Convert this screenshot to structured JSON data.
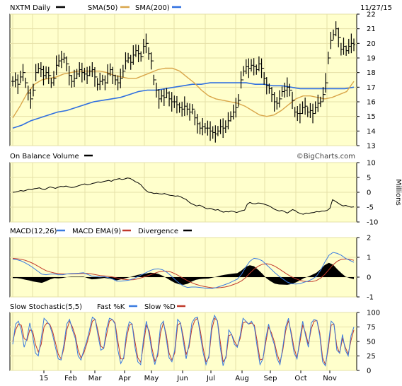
{
  "header": {
    "symbol_label": "NXTM Daily",
    "sma50_label": "SMA(50)",
    "sma200_label": "SMA(200)",
    "date": "11/27/15"
  },
  "colors": {
    "panel_bg": "#ffffcc",
    "grid": "#e6e0a8",
    "price": "#000000",
    "sma50": "#d9a64a",
    "sma200": "#2f6fe0",
    "macd": "#3a7be0",
    "macd_ema": "#c0392b",
    "stoch_fast": "#3a7be0",
    "stoch_slow": "#c0392b"
  },
  "panels": {
    "obv_title": "On Balance Volume",
    "obv_unit": "Millions",
    "macd_title": "MACD(12,26)",
    "macd_ema_title": "MACD EMA(9)",
    "divergence_title": "Divergence",
    "stoch_title": "Slow Stochastic(5,5)",
    "stoch_fast_title": "Fast %K",
    "stoch_slow_title": "Slow %D",
    "watermark": "©BigCharts.com"
  },
  "x_axis_labels": [
    "15",
    "Feb",
    "Mar",
    "Apr",
    "May",
    "Jun",
    "Jul",
    "Aug",
    "Sep",
    "Oct",
    "Nov"
  ],
  "chart_data": [
    {
      "type": "line",
      "title": "NXTM Daily",
      "series_names": [
        "NXTM Daily",
        "SMA(50)",
        "SMA(200)"
      ],
      "ylim": [
        13,
        22
      ],
      "yticks": [
        13,
        14,
        15,
        16,
        17,
        18,
        19,
        20,
        21,
        22
      ],
      "price": [
        17.4,
        17.5,
        17.2,
        17.7,
        18,
        17.3,
        16.6,
        16.2,
        16.8,
        18,
        18.3,
        18.2,
        17.8,
        18,
        17.8,
        17.3,
        17.6,
        18.5,
        18.8,
        18.9,
        19,
        18.6,
        17.8,
        17.4,
        17.6,
        17.9,
        18.2,
        18,
        17.9,
        17.8,
        18.1,
        18.2,
        17.7,
        17.2,
        17.4,
        17.5,
        17.3,
        17.9,
        18.2,
        17.8,
        17.5,
        17.3,
        17.6,
        18.1,
        18.8,
        19,
        18.7,
        19.2,
        19.5,
        19.3,
        19.1,
        19.8,
        20,
        19.3,
        18.8,
        17.5,
        16.8,
        16.2,
        16.4,
        16.3,
        16.6,
        16.2,
        16,
        16,
        15.8,
        15.6,
        15.5,
        15.7,
        15.5,
        15.3,
        15.5,
        14.9,
        14.5,
        14.2,
        14.3,
        14.2,
        14.2,
        14,
        13.9,
        13.8,
        14,
        14.3,
        14.2,
        14.3,
        14.7,
        15,
        15.3,
        15.6,
        16.1,
        17.5,
        18.1,
        18.4,
        18.3,
        18.5,
        18.4,
        18.2,
        18.6,
        18.3,
        17.6,
        17.1,
        16.9,
        16.5,
        16,
        15.9,
        16.2,
        16.7,
        16.8,
        17,
        16.8,
        16.1,
        15.3,
        15.2,
        15.2,
        15.6,
        15.7,
        15.3,
        15.4,
        15.2,
        15.6,
        15.9,
        16,
        16.5,
        17.3,
        19,
        20.2,
        20.6,
        21,
        20.4,
        19.6,
        19.8,
        19.5,
        19.8,
        20,
        19.9
      ],
      "sma50": [
        14.9,
        15.7,
        16.6,
        17.2,
        17.5,
        17.6,
        17.7,
        17.9,
        18,
        18.1,
        18.1,
        18.1,
        18.1,
        18,
        17.8,
        17.7,
        17.6,
        17.6,
        17.8,
        18,
        18.2,
        18.3,
        18.3,
        18.1,
        17.7,
        17.3,
        16.8,
        16.4,
        16.2,
        16.1,
        16,
        15.9,
        15.7,
        15.4,
        15.1,
        15,
        15.1,
        15.4,
        15.8,
        16.2,
        16.4,
        16.4,
        16.3,
        16.2,
        16.3,
        16.5,
        16.7,
        17.4
      ],
      "sma200": [
        14.2,
        14.4,
        14.7,
        14.9,
        15.1,
        15.3,
        15.4,
        15.6,
        15.8,
        16,
        16.1,
        16.2,
        16.3,
        16.5,
        16.7,
        16.8,
        16.8,
        16.9,
        17,
        17.1,
        17.2,
        17.2,
        17.3,
        17.3,
        17.3,
        17.3,
        17.3,
        17.2,
        17.2,
        17.1,
        17.1,
        17,
        16.9,
        16.9,
        16.9,
        16.9,
        16.9,
        16.9,
        17
      ]
    },
    {
      "type": "line",
      "title": "On Balance Volume",
      "ylabel": "Millions",
      "ylim": [
        -10,
        10
      ],
      "yticks": [
        10,
        5,
        0,
        -5,
        -10
      ],
      "values": [
        0,
        0.1,
        0.3,
        0.6,
        0.4,
        0.7,
        1,
        0.9,
        1.2,
        1.3,
        1.5,
        1.1,
        0.9,
        1.4,
        1.8,
        1.6,
        1.3,
        1.7,
        2,
        1.9,
        2.1,
        1.8,
        1.6,
        1.7,
        2,
        2.3,
        2.6,
        2.8,
        2.5,
        2.7,
        3,
        3.2,
        3.5,
        3.3,
        3.6,
        3.8,
        4,
        3.7,
        4.2,
        4.4,
        4.6,
        4.3,
        4.5,
        4.8,
        4.7,
        4.2,
        3.6,
        3.2,
        2.6,
        1.5,
        0.6,
        0,
        -0.1,
        -0.4,
        -0.3,
        -0.5,
        -0.6,
        -0.4,
        -0.8,
        -1,
        -1.1,
        -1.3,
        -1.2,
        -1.5,
        -2,
        -2.4,
        -3.2,
        -3.8,
        -4.2,
        -4.6,
        -4.3,
        -4.7,
        -5.2,
        -5.6,
        -5.4,
        -5.7,
        -6,
        -5.8,
        -6.3,
        -6.7,
        -6.5,
        -6.6,
        -6.3,
        -6.5,
        -6.8,
        -6.5,
        -6.2,
        -6,
        -4,
        -3.4,
        -3.8,
        -3.9,
        -3.6,
        -3.7,
        -3.9,
        -4.2,
        -4.5,
        -5,
        -5.6,
        -6,
        -6.3,
        -6.1,
        -6.5,
        -7,
        -6.4,
        -5.8,
        -6.2,
        -6.8,
        -7.2,
        -7.4,
        -7,
        -7.1,
        -6.9,
        -6.8,
        -6.5,
        -6.6,
        -6.3,
        -6.3,
        -6.1,
        -5.4,
        -2.5,
        -3,
        -3.6,
        -4.2,
        -4.6,
        -4.4,
        -4.8,
        -5,
        -4.9
      ]
    },
    {
      "type": "line",
      "title": "MACD(12,26)",
      "series_names": [
        "MACD(12,26)",
        "MACD EMA(9)",
        "Divergence"
      ],
      "ylim": [
        -1,
        2
      ],
      "yticks": [
        2,
        1,
        0,
        -1
      ],
      "macd": [
        0.9,
        0.88,
        0.82,
        0.72,
        0.6,
        0.46,
        0.3,
        0.15,
        0.12,
        0.15,
        0.16,
        0.12,
        0.12,
        0.16,
        0.18,
        0.19,
        0.2,
        0.22,
        0.14,
        0.05,
        0.02,
        0.01,
        0.02,
        -0.03,
        -0.1,
        -0.2,
        -0.2,
        -0.18,
        -0.15,
        -0.08,
        0.02,
        0.12,
        0.22,
        0.33,
        0.4,
        0.42,
        0.37,
        0.25,
        0.08,
        -0.12,
        -0.3,
        -0.45,
        -0.52,
        -0.5,
        -0.5,
        -0.52,
        -0.55,
        -0.58,
        -0.57,
        -0.52,
        -0.45,
        -0.38,
        -0.3,
        -0.2,
        -0.1,
        0.15,
        0.5,
        0.8,
        0.95,
        0.92,
        0.82,
        0.62,
        0.43,
        0.22,
        0.05,
        -0.1,
        -0.25,
        -0.33,
        -0.35,
        -0.33,
        -0.26,
        -0.2,
        -0.1,
        0.05,
        0.35,
        0.75,
        1.1,
        1.25,
        1.2,
        1.1,
        0.95,
        0.85,
        0.75
      ],
      "signal": [
        0.95,
        0.93,
        0.9,
        0.85,
        0.77,
        0.68,
        0.56,
        0.44,
        0.33,
        0.26,
        0.21,
        0.18,
        0.16,
        0.16,
        0.16,
        0.17,
        0.18,
        0.19,
        0.19,
        0.16,
        0.12,
        0.08,
        0.06,
        0.04,
        0.01,
        -0.04,
        -0.09,
        -0.12,
        -0.14,
        -0.13,
        -0.09,
        -0.03,
        0.04,
        0.11,
        0.19,
        0.26,
        0.3,
        0.3,
        0.26,
        0.17,
        0.06,
        -0.06,
        -0.18,
        -0.28,
        -0.36,
        -0.42,
        -0.47,
        -0.51,
        -0.54,
        -0.54,
        -0.53,
        -0.5,
        -0.45,
        -0.38,
        -0.3,
        -0.19,
        -0.02,
        0.2,
        0.4,
        0.55,
        0.65,
        0.68,
        0.64,
        0.55,
        0.42,
        0.28,
        0.14,
        0.02,
        -0.08,
        -0.16,
        -0.21,
        -0.23,
        -0.22,
        -0.17,
        -0.05,
        0.14,
        0.38,
        0.62,
        0.8,
        0.9,
        0.92,
        0.9,
        0.85
      ]
    },
    {
      "type": "line",
      "title": "Slow Stochastic(5,5)",
      "series_names": [
        "Fast %K",
        "Slow %D"
      ],
      "ylim": [
        0,
        100
      ],
      "yticks": [
        100,
        75,
        50,
        25,
        0
      ],
      "fast_k": [
        45,
        80,
        85,
        70,
        40,
        55,
        82,
        60,
        30,
        25,
        55,
        90,
        85,
        78,
        62,
        40,
        20,
        18,
        45,
        80,
        88,
        70,
        55,
        25,
        18,
        35,
        50,
        70,
        92,
        88,
        60,
        35,
        38,
        72,
        90,
        88,
        80,
        35,
        12,
        22,
        65,
        84,
        80,
        40,
        15,
        10,
        55,
        85,
        62,
        30,
        10,
        30,
        78,
        85,
        55,
        22,
        15,
        35,
        88,
        82,
        50,
        20,
        45,
        82,
        90,
        92,
        60,
        30,
        10,
        25,
        80,
        95,
        85,
        40,
        8,
        25,
        70,
        62,
        45,
        40,
        60,
        90,
        85,
        80,
        85,
        75,
        40,
        10,
        20,
        55,
        80,
        60,
        45,
        20,
        10,
        40,
        75,
        90,
        60,
        30,
        20,
        55,
        85,
        60,
        40,
        82,
        88,
        86,
        60,
        15,
        8,
        45,
        85,
        80,
        35,
        30,
        62,
        35,
        25,
        60,
        75
      ],
      "slow_d": [
        50,
        70,
        80,
        78,
        55,
        52,
        70,
        68,
        45,
        32,
        45,
        75,
        82,
        80,
        68,
        48,
        28,
        20,
        38,
        70,
        85,
        75,
        60,
        35,
        22,
        30,
        45,
        63,
        85,
        88,
        68,
        42,
        38,
        62,
        85,
        88,
        82,
        50,
        20,
        20,
        55,
        78,
        80,
        50,
        22,
        14,
        45,
        78,
        68,
        38,
        16,
        25,
        65,
        82,
        62,
        30,
        18,
        30,
        78,
        82,
        58,
        28,
        40,
        72,
        86,
        90,
        68,
        38,
        15,
        22,
        70,
        90,
        86,
        50,
        15,
        22,
        60,
        62,
        50,
        42,
        55,
        82,
        84,
        80,
        82,
        78,
        50,
        18,
        20,
        48,
        75,
        65,
        50,
        28,
        14,
        35,
        68,
        86,
        65,
        38,
        22,
        48,
        78,
        65,
        45,
        72,
        85,
        86,
        65,
        22,
        10,
        38,
        78,
        80,
        42,
        30,
        55,
        40,
        28,
        52,
        70
      ],
      "x_axis_labels": [
        "15",
        "Feb",
        "Mar",
        "Apr",
        "May",
        "Jun",
        "Jul",
        "Aug",
        "Sep",
        "Oct",
        "Nov"
      ]
    }
  ]
}
